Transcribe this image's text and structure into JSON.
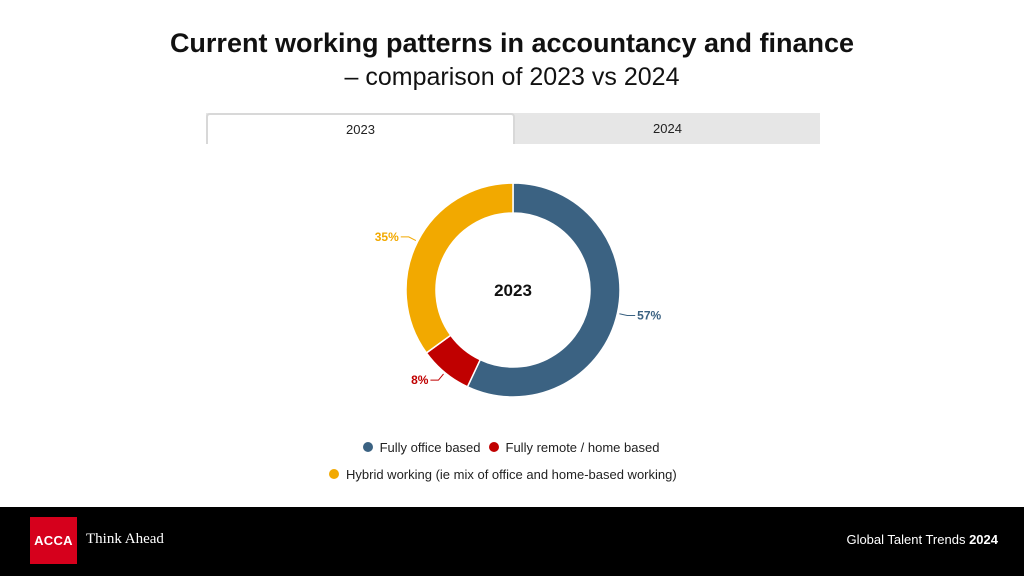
{
  "title": {
    "line1": "Current working patterns in accountancy and finance",
    "line2": "– comparison of 2023 vs 2024"
  },
  "tabs": [
    {
      "label": "2023",
      "active": true
    },
    {
      "label": "2024",
      "active": false
    }
  ],
  "chart_data": {
    "type": "pie",
    "variant": "donut",
    "center_label": "2023",
    "slices": [
      {
        "name": "Fully office based",
        "value": 57,
        "label": "57%",
        "color": "#3b6282"
      },
      {
        "name": "Fully remote / home based",
        "value": 8,
        "label": "8%",
        "color": "#c00000"
      },
      {
        "name": "Hybrid working (ie mix of office and home-based working)",
        "value": 35,
        "label": "35%",
        "color": "#f2a900"
      }
    ],
    "legend_placement": "bottom"
  },
  "legend": [
    {
      "label": "Fully office based",
      "color": "#3b6282"
    },
    {
      "label": "Fully remote / home based",
      "color": "#c00000"
    },
    {
      "label": "Hybrid working (ie mix of office and home-based working)",
      "color": "#f2a900"
    }
  ],
  "footer": {
    "logo_text": "ACCA",
    "tagline": "Think Ahead",
    "report_prefix": "Global Talent Trends",
    "report_year": "2024"
  }
}
